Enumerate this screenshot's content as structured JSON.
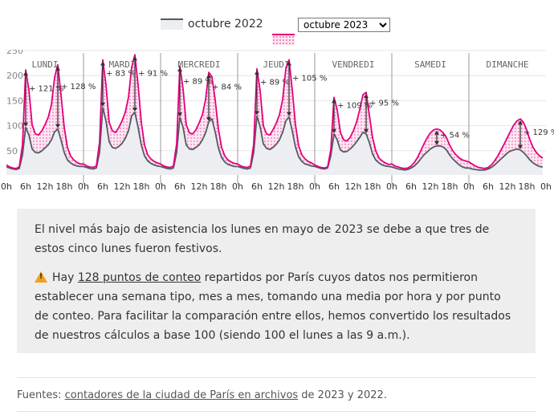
{
  "legend": {
    "label_2022": "octubre 2022",
    "select_value": "octubre 2023",
    "colors": {
      "2022": "#555a63",
      "2023": "#e4007c",
      "fill_2022": "#eceef1",
      "fill_2023": "#fde6f2"
    }
  },
  "chart_data": {
    "type": "line",
    "days": [
      "LUNDI",
      "MARDI",
      "MERCREDI",
      "JEUDI",
      "VENDREDI",
      "SAMEDI",
      "DIMANCHE"
    ],
    "x_tick_labels": [
      "0h",
      "6h",
      "12h",
      "18h"
    ],
    "x_last_label": "0h",
    "ylim": [
      0,
      250
    ],
    "y_ticks": [
      50,
      100,
      150,
      200,
      250
    ],
    "series": [
      {
        "values": [
          [
            16,
            14,
            12,
            11,
            13,
            40,
            95,
            80,
            52,
            45,
            44,
            48,
            54,
            60,
            70,
            86,
            92,
            70,
            45,
            30,
            24,
            20,
            18,
            17
          ],
          [
            17,
            15,
            13,
            12,
            14,
            45,
            135,
            108,
            66,
            55,
            53,
            57,
            63,
            73,
            88,
            118,
            125,
            95,
            60,
            38,
            28,
            23,
            20,
            18
          ],
          [
            17,
            15,
            13,
            12,
            14,
            45,
            115,
            95,
            60,
            52,
            51,
            55,
            60,
            70,
            84,
            106,
            112,
            86,
            54,
            35,
            26,
            21,
            19,
            17
          ],
          [
            17,
            15,
            13,
            12,
            14,
            45,
            118,
            96,
            62,
            53,
            51,
            55,
            61,
            70,
            85,
            108,
            116,
            88,
            56,
            36,
            27,
            22,
            20,
            18
          ],
          [
            17,
            15,
            13,
            12,
            14,
            38,
            82,
            70,
            50,
            46,
            47,
            52,
            58,
            66,
            75,
            85,
            82,
            65,
            42,
            30,
            24,
            20,
            18,
            17
          ],
          [
            16,
            14,
            12,
            11,
            10,
            11,
            14,
            18,
            24,
            32,
            40,
            46,
            52,
            56,
            58,
            58,
            56,
            50,
            40,
            32,
            26,
            20,
            16,
            14
          ],
          [
            14,
            12,
            11,
            10,
            10,
            10,
            12,
            15,
            20,
            26,
            32,
            38,
            44,
            48,
            50,
            52,
            50,
            45,
            38,
            30,
            24,
            20,
            17,
            16
          ]
        ]
      },
      {
        "values": [
          [
            20,
            16,
            14,
            13,
            16,
            60,
            210,
            170,
            100,
            82,
            80,
            88,
            100,
            115,
            140,
            195,
            220,
            160,
            95,
            55,
            38,
            30,
            25,
            22
          ],
          [
            22,
            18,
            16,
            15,
            18,
            65,
            230,
            180,
            105,
            88,
            85,
            95,
            108,
            125,
            155,
            215,
            240,
            180,
            105,
            60,
            40,
            32,
            27,
            24
          ],
          [
            22,
            18,
            16,
            15,
            18,
            62,
            218,
            172,
            100,
            84,
            82,
            90,
            104,
            120,
            150,
            205,
            196,
            150,
            92,
            55,
            38,
            30,
            26,
            23
          ],
          [
            22,
            18,
            16,
            15,
            18,
            62,
            212,
            168,
            98,
            82,
            80,
            90,
            103,
            120,
            150,
            212,
            230,
            170,
            100,
            58,
            40,
            32,
            27,
            24
          ],
          [
            20,
            17,
            15,
            14,
            16,
            50,
            155,
            130,
            85,
            70,
            68,
            75,
            88,
            105,
            130,
            160,
            165,
            120,
            75,
            48,
            34,
            28,
            24,
            21
          ],
          [
            22,
            18,
            16,
            14,
            13,
            14,
            18,
            25,
            35,
            48,
            62,
            74,
            84,
            90,
            92,
            90,
            84,
            75,
            60,
            48,
            40,
            34,
            30,
            28
          ],
          [
            26,
            22,
            18,
            15,
            14,
            13,
            15,
            20,
            28,
            38,
            50,
            62,
            75,
            88,
            100,
            108,
            112,
            105,
            90,
            70,
            55,
            45,
            38,
            34
          ]
        ]
      }
    ],
    "annotations": [
      "+ 121 %",
      "+ 128 %",
      "+ 83 %",
      "+ 91 %",
      "+ 89 %",
      "+ 84 %",
      "+ 89 %",
      "+ 105 %",
      "+ 109 %",
      "+ 95 %",
      "+ 54 %",
      "+ 129 %"
    ]
  },
  "note": {
    "paragraph1": "El nivel más bajo de asistencia los lunes en mayo de 2023 se debe a que tres de estos cinco lunes fueron festivos.",
    "p2_before": "Hay ",
    "p2_link": "128 puntos de conteo",
    "p2_after": " repartidos por París cuyos datos nos permitieron establecer una semana tipo, mes a mes, tomando una media por hora y por punto de conteo. Para facilitar la comparación entre ellos, hemos convertido los resultados de nuestros cálculos a base 100 (siendo 100 el lunes a las 9 a.m.)."
  },
  "sources": {
    "prefix": "Fuentes: ",
    "link": "contadores de la ciudad de París en archivos",
    "suffix": " de 2023 y 2022."
  }
}
